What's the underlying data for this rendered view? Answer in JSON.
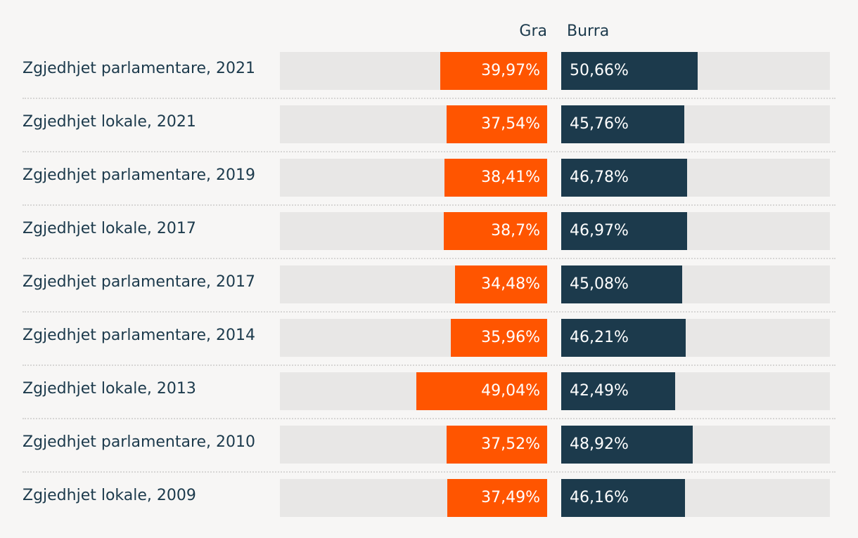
{
  "chart_data": {
    "type": "bar",
    "orientation": "horizontal-diverging",
    "legend": [
      "Gra",
      "Burra"
    ],
    "categories": [
      "Zgjedhjet parlamentare, 2021",
      "Zgjedhjet lokale, 2021",
      "Zgjedhjet parlamentare, 2019",
      "Zgjedhjet lokale, 2017",
      "Zgjedhjet parlamentare, 2017",
      "Zgjedhjet parlamentare, 2014",
      "Zgjedhjet lokale, 2013",
      "Zgjedhjet parlamentare, 2010",
      "Zgjedhjet lokale, 2009"
    ],
    "series": [
      {
        "name": "Gra",
        "color": "#ff5500",
        "values": [
          39.97,
          37.54,
          38.41,
          38.7,
          34.48,
          35.96,
          49.04,
          37.52,
          37.49
        ],
        "labels": [
          "39,97%",
          "37,54%",
          "38,41%",
          "38,7%",
          "34,48%",
          "35,96%",
          "49,04%",
          "37,52%",
          "37,49%"
        ]
      },
      {
        "name": "Burra",
        "color": "#1c3a4c",
        "values": [
          50.66,
          45.76,
          46.78,
          46.97,
          45.08,
          46.21,
          42.49,
          48.92,
          46.16
        ],
        "labels": [
          "50,66%",
          "45,76%",
          "46,78%",
          "46,97%",
          "45,08%",
          "46,21%",
          "42,49%",
          "48,92%",
          "46,16%"
        ]
      }
    ],
    "xlim": [
      0,
      100
    ],
    "title": "",
    "xlabel": "",
    "ylabel": "",
    "track_color": "#e8e7e6",
    "background": "#f7f6f5"
  }
}
